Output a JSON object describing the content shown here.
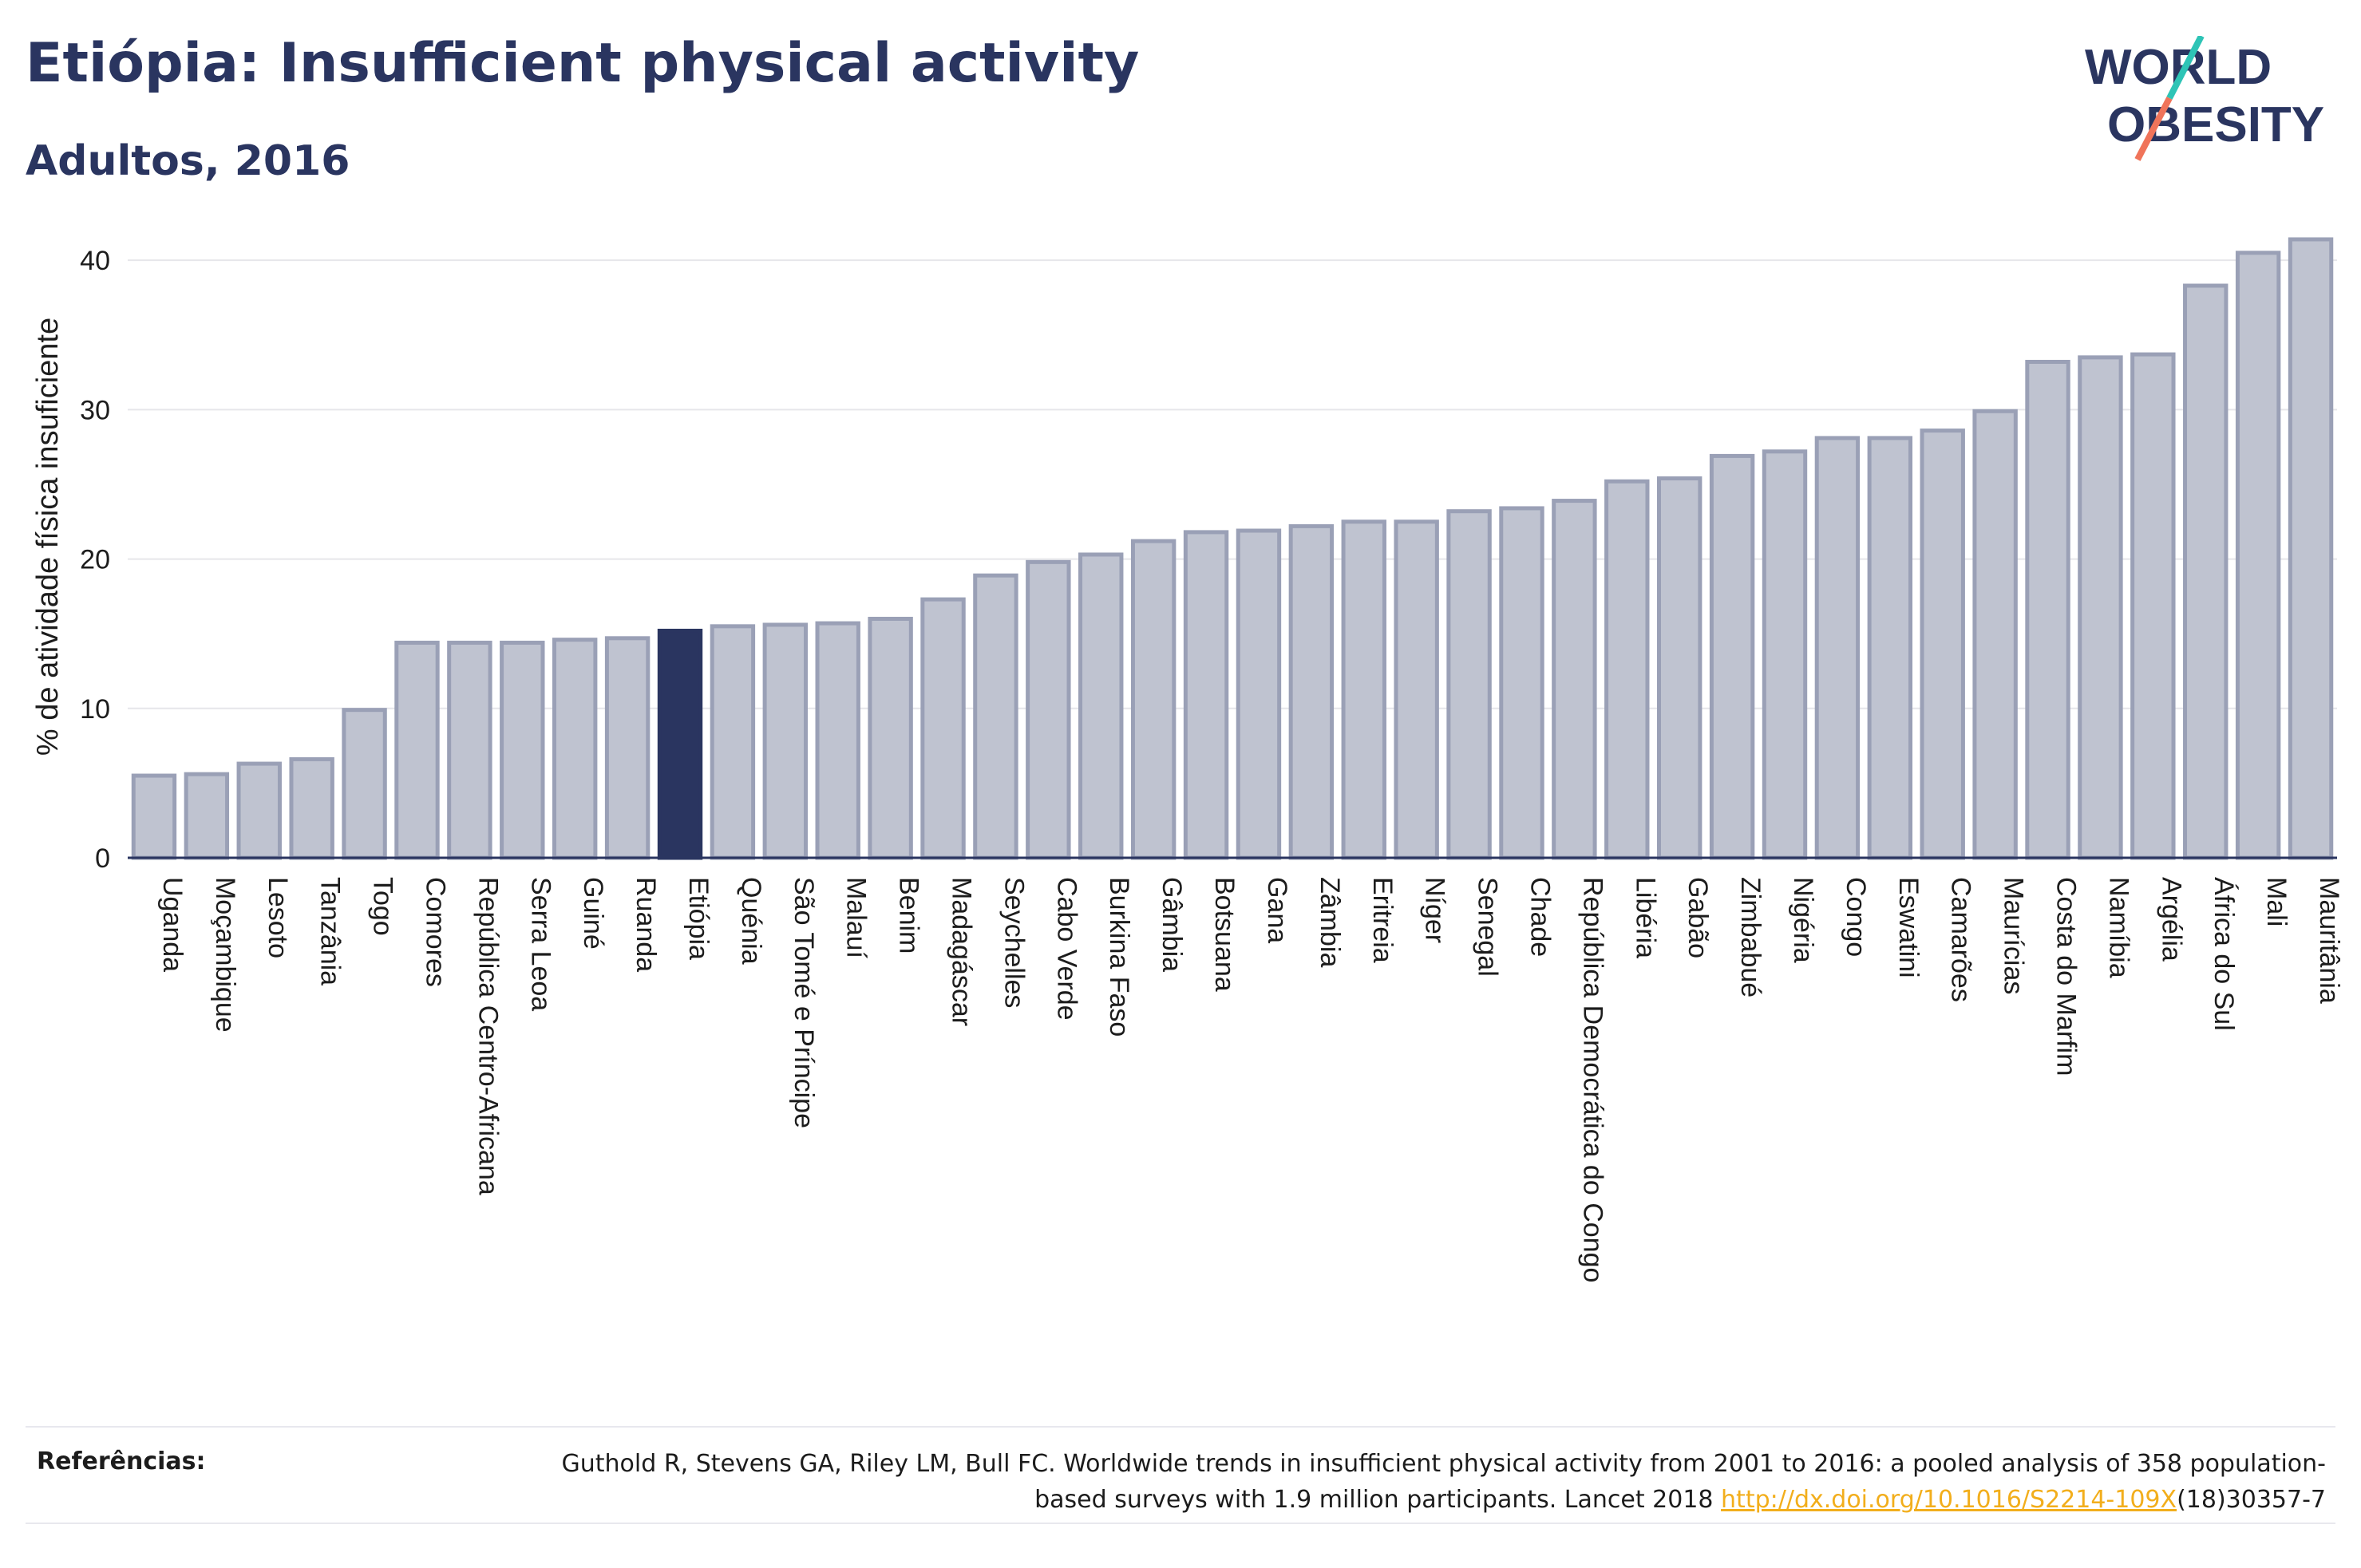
{
  "header": {
    "title": "Etiópia: Insufficient physical activity",
    "subtitle": "Adultos, 2016"
  },
  "logo": {
    "line1": "WORLD",
    "line2": "OBESITY",
    "colors": {
      "text": "#2a3560",
      "slash_teal": "#2ec4b6",
      "slash_coral": "#f0745a"
    }
  },
  "references": {
    "label": "Referências:",
    "text_before": "Guthold R, Stevens GA, Riley LM, Bull FC. Worldwide trends in insufficient physical activity from 2001 to 2016: a pooled analysis of 358 population-based surveys with 1.9 million participants. Lancet 2018 ",
    "link": "http://dx.doi.org/10.1016/S2214-109X",
    "text_after": "(18)30357-7"
  },
  "colors": {
    "bar_fill": "#bfc3d0",
    "bar_stroke": "#9aa0b6",
    "highlight": "#2a3560",
    "grid": "#e6e6ea",
    "text": "#1c1c1c"
  },
  "chart_data": {
    "type": "bar",
    "ylabel": "% de atividade física insuficiente",
    "xlabel": "",
    "ylim": [
      0,
      43
    ],
    "yticks": [
      0,
      10,
      20,
      30,
      40
    ],
    "grid": true,
    "highlight": "Etiópia",
    "categories": [
      "Uganda",
      "Moçambique",
      "Lesoto",
      "Tanzânia",
      "Togo",
      "Comores",
      "República Centro-Africana",
      "Serra Leoa",
      "Guiné",
      "Ruanda",
      "Etiópia",
      "Quénia",
      "São Tomé e Príncipe",
      "Malauí",
      "Benim",
      "Madagáscar",
      "Seychelles",
      "Cabo Verde",
      "Burkina Faso",
      "Gâmbia",
      "Botsuana",
      "Gana",
      "Zâmbia",
      "Eritreia",
      "Níger",
      "Senegal",
      "Chade",
      "República Democrática do Congo",
      "Libéria",
      "Gabão",
      "Zimbabué",
      "Nigéria",
      "Congo",
      "Eswatini",
      "Camarões",
      "Maurícias",
      "Costa do Marfim",
      "Namíbia",
      "Argélia",
      "África do Sul",
      "Mali",
      "Mauritânia"
    ],
    "values": [
      5.5,
      5.6,
      6.3,
      6.6,
      9.9,
      14.4,
      14.4,
      14.4,
      14.6,
      14.7,
      15.2,
      15.5,
      15.6,
      15.7,
      16.0,
      17.3,
      18.9,
      19.8,
      20.3,
      21.2,
      21.8,
      21.9,
      22.2,
      22.5,
      22.5,
      23.2,
      23.4,
      23.9,
      25.2,
      25.4,
      26.9,
      27.2,
      28.1,
      28.1,
      28.6,
      29.9,
      33.2,
      33.5,
      33.7,
      38.3,
      40.5,
      41.4
    ]
  }
}
